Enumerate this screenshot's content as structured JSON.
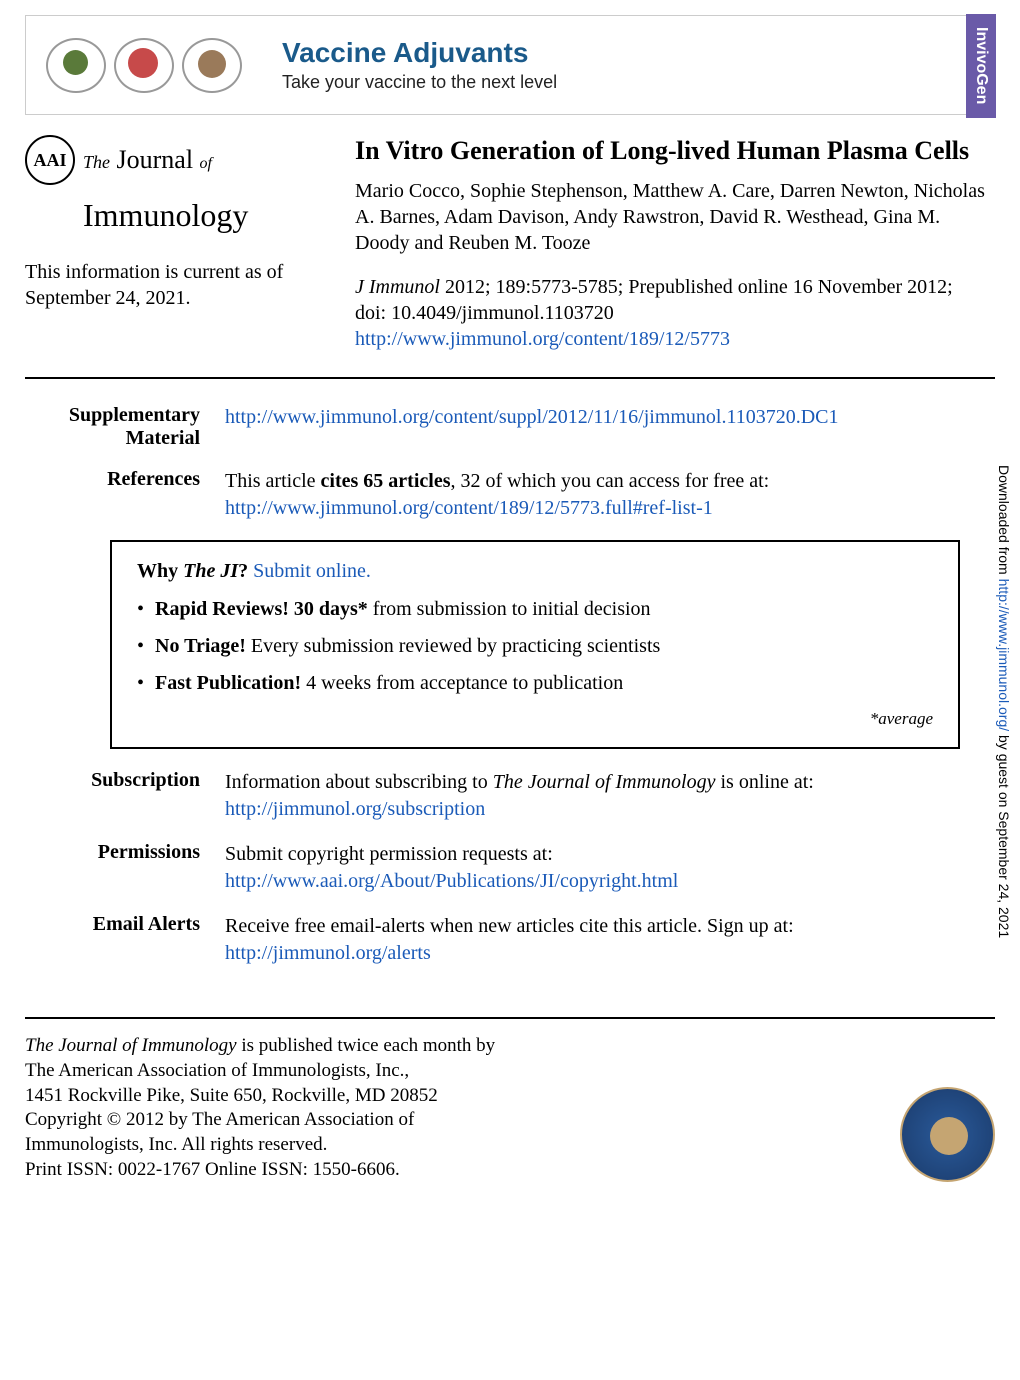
{
  "banner": {
    "title": "Vaccine Adjuvants",
    "subtitle": "Take your vaccine to the next level",
    "tab": "InvivoGen"
  },
  "journal_logo": {
    "seal_text": "AAI",
    "the": "The",
    "journal": "Journal",
    "of": "of",
    "immunology": "Immunology"
  },
  "current_info": "This information is current as of September 24, 2021.",
  "article": {
    "title": "In Vitro Generation of Long-lived Human Plasma Cells",
    "authors": "Mario Cocco, Sophie Stephenson, Matthew A. Care, Darren Newton, Nicholas A. Barnes, Adam Davison, Andy Rawstron, David R. Westhead, Gina M. Doody and Reuben M. Tooze",
    "journal_name": "J Immunol",
    "citation_text": " 2012; 189:5773-5785; Prepublished online 16 November 2012;",
    "doi": "doi: 10.4049/jimmunol.1103720",
    "url": "http://www.jimmunol.org/content/189/12/5773"
  },
  "supplementary": {
    "label": "Supplementary Material",
    "url": "http://www.jimmunol.org/content/suppl/2012/11/16/jimmunol.1103720.DC1"
  },
  "references": {
    "label": "References",
    "text1": "This article ",
    "bold": "cites 65 articles",
    "text2": ", 32 of which you can access for free at:",
    "url": "http://www.jimmunol.org/content/189/12/5773.full#ref-list-1"
  },
  "why_box": {
    "why": "Why ",
    "the_ji": "The JI",
    "q": "? ",
    "submit": "Submit online.",
    "item1_bold": "Rapid Reviews! 30 days*",
    "item1_rest": " from submission to initial decision",
    "item2_bold": "No Triage!",
    "item2_rest": " Every submission reviewed by practicing scientists",
    "item3_bold": "Fast Publication!",
    "item3_rest": " 4 weeks from acceptance to publication",
    "average": "*average"
  },
  "subscription": {
    "label": "Subscription",
    "text": "Information about subscribing to ",
    "ital": "The Journal of Immunology",
    "text2": " is online at:",
    "url": "http://jimmunol.org/subscription"
  },
  "permissions": {
    "label": "Permissions",
    "text": "Submit copyright permission requests at:",
    "url": "http://www.aai.org/About/Publications/JI/copyright.html"
  },
  "email_alerts": {
    "label": "Email Alerts",
    "text": "Receive free email-alerts when new articles cite this article. Sign up at:",
    "url": "http://jimmunol.org/alerts"
  },
  "footer": {
    "line1_ital": "The Journal of Immunology",
    "line1_rest": " is published twice each month by",
    "line2": "The American Association of Immunologists, Inc.,",
    "line3": "1451 Rockville Pike, Suite 650, Rockville, MD 20852",
    "line4": "Copyright © 2012 by The American Association of",
    "line5": "Immunologists, Inc. All rights reserved.",
    "line6": "Print ISSN: 0022-1767 Online ISSN: 1550-6606."
  },
  "sidebar": {
    "text1": "Downloaded from ",
    "url": "http://www.jimmunol.org/",
    "text2": " by guest on September 24, 2021"
  }
}
